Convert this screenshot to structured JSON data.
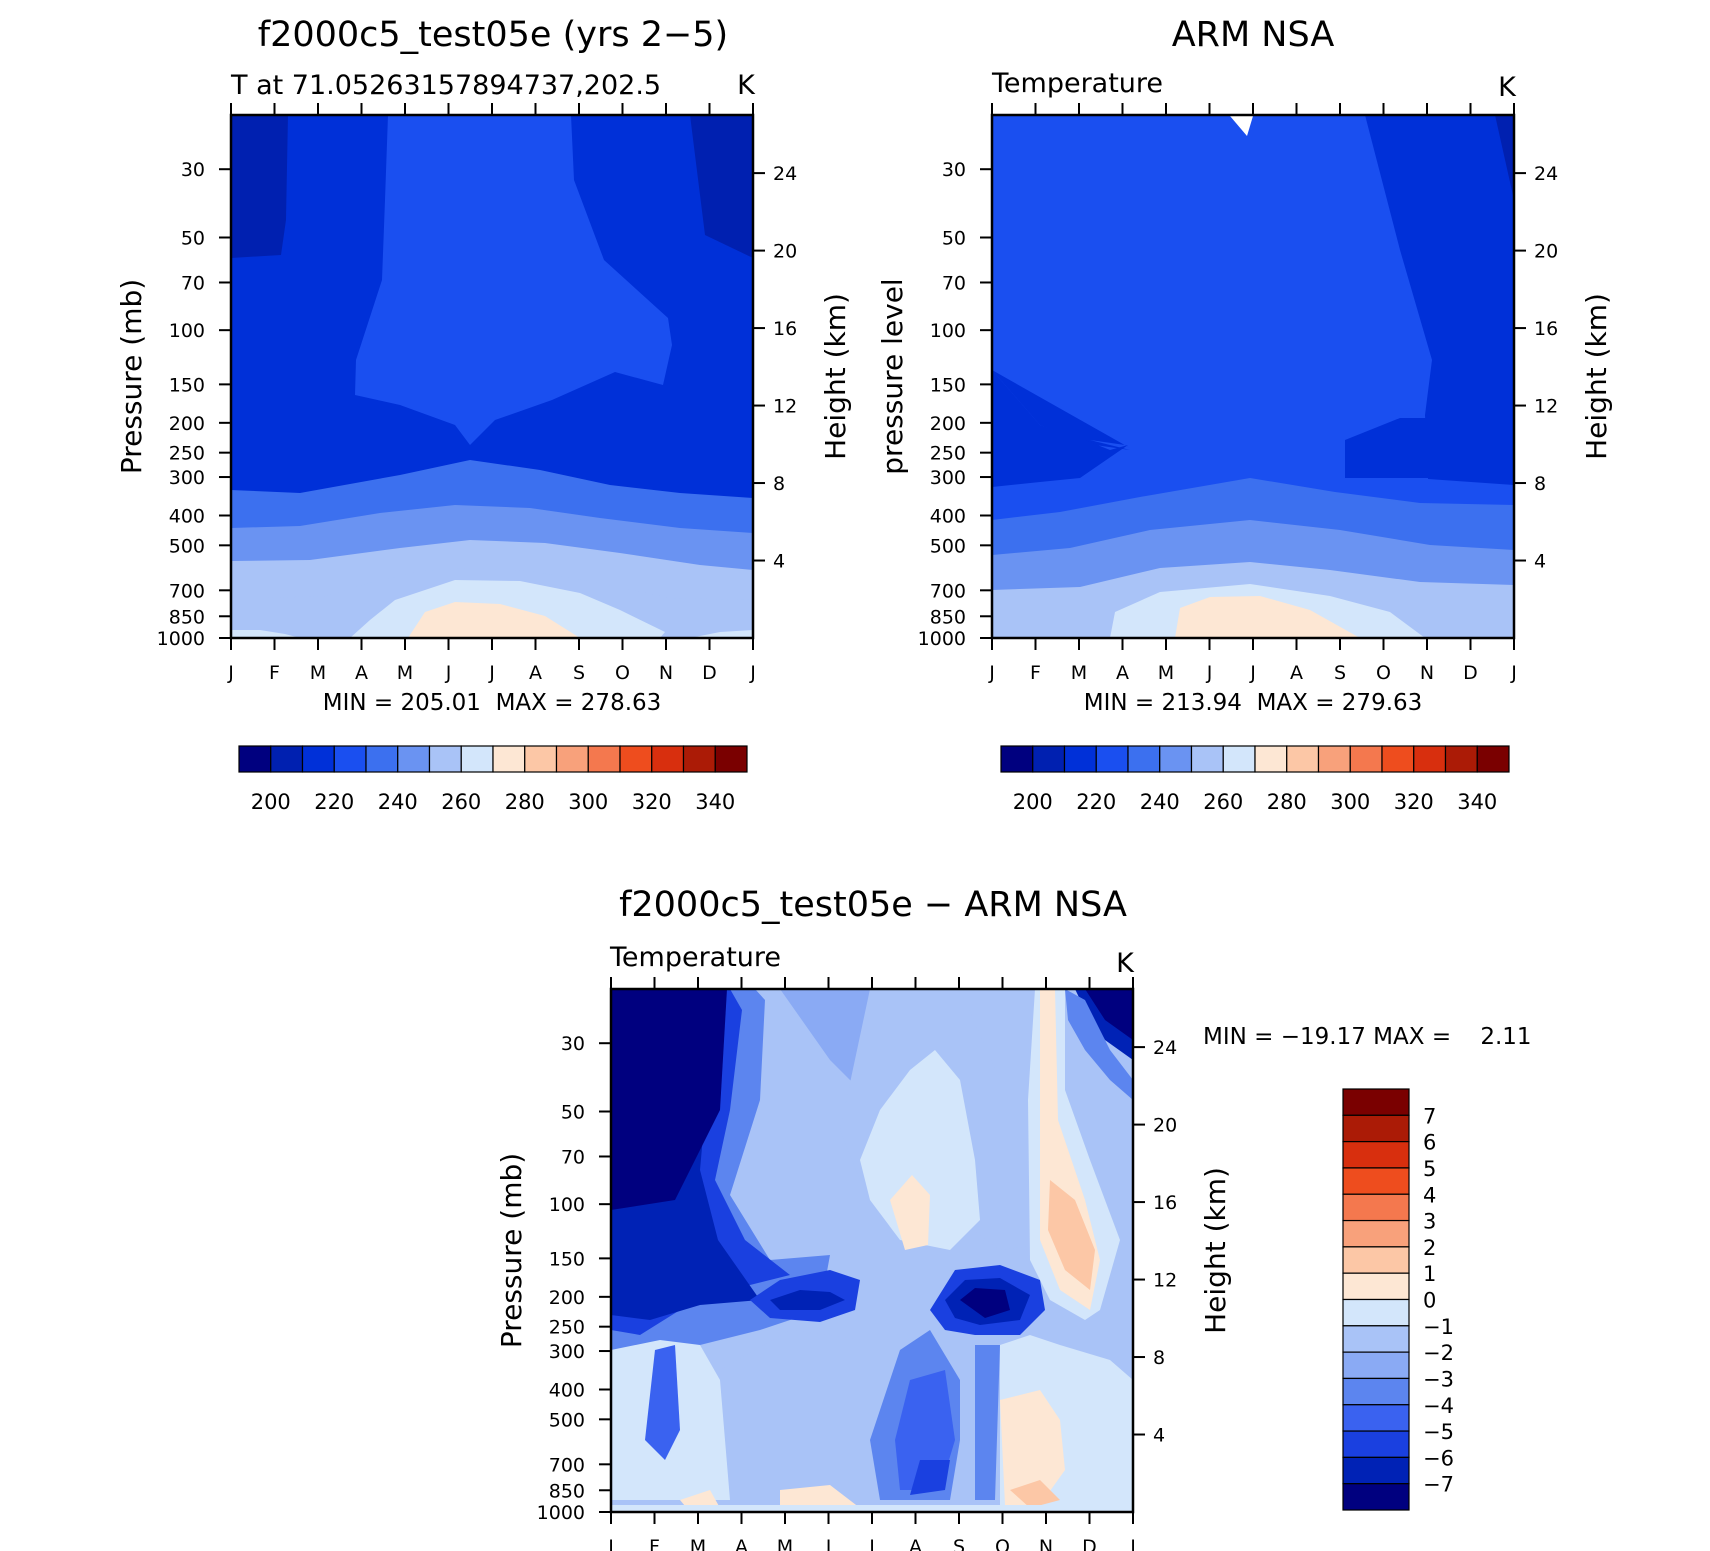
{
  "months": [
    "J",
    "F",
    "M",
    "A",
    "M",
    "J",
    "J",
    "A",
    "S",
    "O",
    "N",
    "D",
    "J"
  ],
  "pressure_ticks": [
    30,
    50,
    70,
    100,
    150,
    200,
    250,
    300,
    400,
    500,
    700,
    850,
    1000
  ],
  "height_ticks": [
    4,
    8,
    12,
    16,
    20,
    24
  ],
  "abs_colorbar": {
    "labels": [
      "200",
      "220",
      "240",
      "260",
      "280",
      "300",
      "320",
      "340"
    ],
    "colors": [
      "#00007f",
      "#0020b0",
      "#0030d8",
      "#1a4ff0",
      "#3c70ef",
      "#6a93f2",
      "#a9c3f7",
      "#d3e6fb",
      "#fde7d4",
      "#fcc7a6",
      "#f8a17b",
      "#f4784e",
      "#ee4d1e",
      "#d82f0e",
      "#ab1b06",
      "#7a0000"
    ]
  },
  "diff_colorbar": {
    "labels": [
      "7",
      "6",
      "5",
      "4",
      "3",
      "2",
      "1",
      "0",
      "−1",
      "−2",
      "−3",
      "−4",
      "−5",
      "−6",
      "−7"
    ],
    "colors": [
      "#7a0000",
      "#ab1b06",
      "#d82f0e",
      "#ee4d1e",
      "#f4784e",
      "#f8a17b",
      "#fcc7a6",
      "#fde7d4",
      "#d3e6fb",
      "#a9c3f7",
      "#8aaaf4",
      "#5c85ef",
      "#3a62f0",
      "#1a40e0",
      "#0022b5",
      "#00007f"
    ]
  },
  "chart_data": [
    {
      "type": "heatmap",
      "title": "f2000c5_test05e (yrs 2−5)",
      "subtitle_left": "T at 71.05263157894737,202.5",
      "subtitle_right": "K",
      "ylabel": "Pressure (mb)",
      "ylabel_right": "Height (km)",
      "x": [
        "J",
        "F",
        "M",
        "A",
        "M",
        "J",
        "J",
        "A",
        "S",
        "O",
        "N",
        "D",
        "J"
      ],
      "ylim": [
        1000,
        20
      ],
      "stats": {
        "min_label": "MIN =",
        "min": "205.01",
        "max_label": "MAX =",
        "max": "278.63"
      },
      "contour_levels": [
        200,
        210,
        220,
        230,
        240,
        250,
        260,
        270,
        280,
        290,
        300,
        310,
        320,
        330,
        340
      ]
    },
    {
      "type": "heatmap",
      "title": "ARM NSA",
      "subtitle_left": "Temperature",
      "subtitle_right": "K",
      "ylabel": "pressure level",
      "ylabel_right": "Height (km)",
      "x": [
        "J",
        "F",
        "M",
        "A",
        "M",
        "J",
        "J",
        "A",
        "S",
        "O",
        "N",
        "D",
        "J"
      ],
      "ylim": [
        1000,
        20
      ],
      "stats": {
        "min_label": "MIN =",
        "min": "213.94",
        "max_label": "MAX =",
        "max": "279.63"
      },
      "contour_levels": [
        200,
        210,
        220,
        230,
        240,
        250,
        260,
        270,
        280,
        290,
        300,
        310,
        320,
        330,
        340
      ]
    },
    {
      "type": "heatmap",
      "title": "f2000c5_test05e − ARM NSA",
      "subtitle_left": "Temperature",
      "subtitle_right": "K",
      "ylabel": "Pressure (mb)",
      "ylabel_right": "Height (km)",
      "x": [
        "J",
        "F",
        "M",
        "A",
        "M",
        "J",
        "J",
        "A",
        "S",
        "O",
        "N",
        "D",
        "J"
      ],
      "ylim": [
        1000,
        20
      ],
      "stats": {
        "min_label": "MIN =",
        "min": "−19.17",
        "max_label": "MAX =",
        "max": "2.11"
      },
      "contour_levels": [
        -7,
        -6,
        -5,
        -4,
        -3,
        -2,
        -1,
        0,
        1,
        2,
        3,
        4,
        5,
        6,
        7
      ]
    }
  ]
}
